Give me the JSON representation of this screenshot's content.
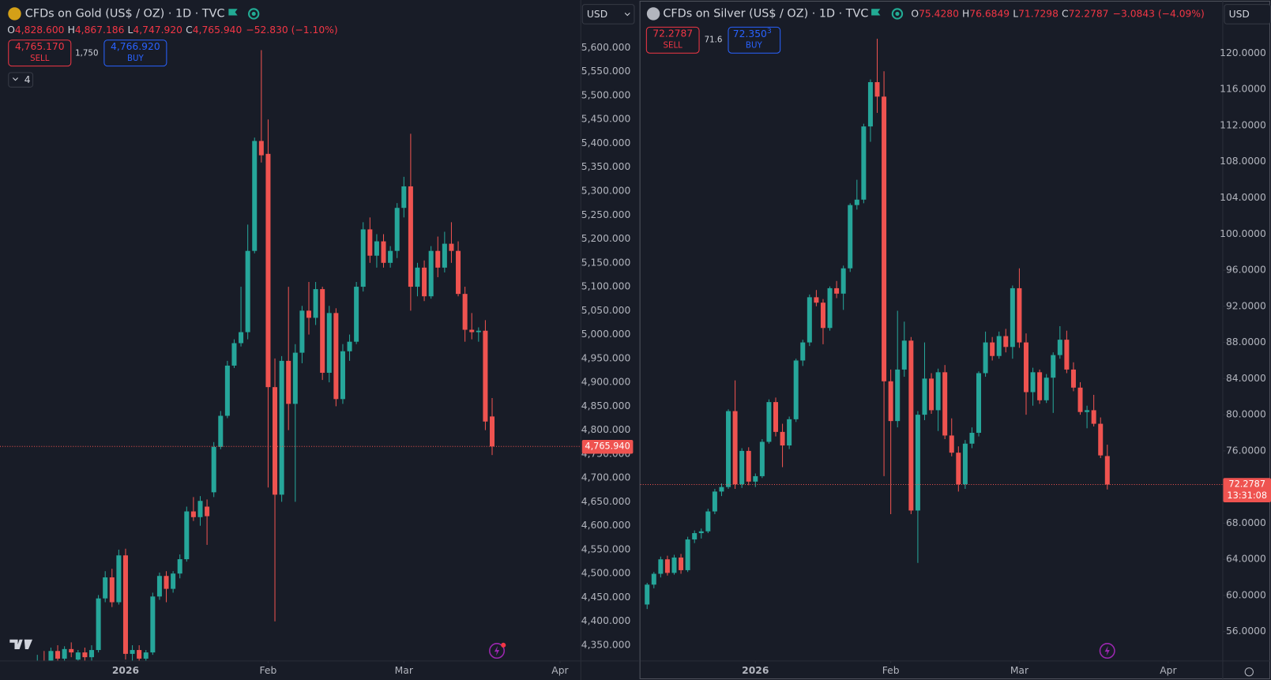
{
  "chart_data": [
    {
      "type": "candlestick",
      "title": "CFDs on Gold (US$ / OZ) · 1D · TVC",
      "ohlc_legend": [
        {
          "key": "O",
          "value": "4,828.600"
        },
        {
          "key": "H",
          "value": "4,867.186"
        },
        {
          "key": "L",
          "value": "4,747.920"
        },
        {
          "key": "C",
          "value": "4,765.940"
        }
      ],
      "change": "−52.830 (−1.10%)",
      "sell_price": "4,765.170",
      "sell_label": "SELL",
      "spread": "1,750",
      "buy_price": "4,766.920",
      "buy_label": "BUY",
      "indicator_count": "4",
      "currency": "USD",
      "up_color": "#26a69a",
      "down_color": "#ef5350",
      "grid": false,
      "open": [
        4290,
        4318,
        4305,
        4338,
        4322,
        4342,
        4320,
        4335,
        4325,
        4340,
        4448,
        4492,
        4440,
        4538,
        4332,
        4340,
        4322,
        4335,
        4452,
        4495,
        4468,
        4500,
        4530,
        4630,
        4618,
        4640,
        4670,
        4765,
        4830,
        4935,
        4982,
        5005,
        5175,
        5405,
        5378,
        4890,
        4665,
        4945,
        4855,
        4962,
        5050,
        5035,
        5095,
        4920,
        5045,
        4865,
        4965,
        4985,
        5100,
        5220,
        5165,
        5195,
        5150,
        5175,
        5265,
        5310,
        5100,
        5140,
        5080,
        5175,
        5140,
        5190,
        5175,
        5085,
        5010,
        5005,
        5008,
        4828.6
      ],
      "high": [
        4330,
        4338,
        4345,
        4350,
        4348,
        4356,
        4340,
        4345,
        4350,
        4455,
        4505,
        4510,
        4550,
        4552,
        4350,
        4350,
        4340,
        4460,
        4502,
        4505,
        4505,
        4540,
        4640,
        4660,
        4662,
        4655,
        4775,
        4840,
        4945,
        4990,
        5100,
        5230,
        5412,
        5595,
        5450,
        4950,
        4955,
        5100,
        4980,
        5060,
        5110,
        5110,
        5100,
        5060,
        5055,
        4980,
        5000,
        5110,
        5235,
        5245,
        5210,
        5210,
        5185,
        5275,
        5330,
        5420,
        5150,
        5155,
        5185,
        5205,
        5215,
        5235,
        5195,
        5100,
        5045,
        5015,
        5030,
        4867.186
      ],
      "low": [
        4270,
        4295,
        4300,
        4310,
        4315,
        4325,
        4300,
        4315,
        4310,
        4335,
        4440,
        4430,
        4435,
        4320,
        4315,
        4310,
        4300,
        4330,
        4445,
        4440,
        4460,
        4490,
        4525,
        4610,
        4600,
        4560,
        4660,
        4760,
        4825,
        4930,
        4975,
        4990,
        5170,
        5360,
        4680,
        4400,
        4650,
        4800,
        4650,
        4940,
        5000,
        5020,
        4905,
        4900,
        4850,
        4855,
        4945,
        4980,
        5090,
        5150,
        5140,
        5140,
        5140,
        5160,
        5245,
        5050,
        5080,
        5070,
        5075,
        5120,
        5130,
        5150,
        5080,
        4985,
        4990,
        4985,
        4800,
        4747.92
      ],
      "close": [
        4318,
        4305,
        4338,
        4322,
        4342,
        4335,
        4335,
        4325,
        4340,
        4448,
        4492,
        4440,
        4538,
        4332,
        4340,
        4322,
        4335,
        4452,
        4495,
        4468,
        4500,
        4530,
        4630,
        4618,
        4652,
        4620,
        4765,
        4830,
        4935,
        4982,
        5005,
        5175,
        5405,
        5375,
        4890,
        4665,
        4945,
        4855,
        4962,
        5050,
        5035,
        5095,
        4920,
        5045,
        4865,
        4965,
        4985,
        5100,
        5220,
        5165,
        5195,
        5150,
        5175,
        5265,
        5310,
        5100,
        5140,
        5080,
        5175,
        5140,
        5190,
        5175,
        5085,
        5010,
        5005,
        5008,
        4818,
        4765.94
      ],
      "last_price": {
        "value": 4765.94,
        "label": "4,765.940"
      },
      "xlim": [
        -5.5,
        80
      ],
      "xticks": [
        {
          "value": 13,
          "label": "2026"
        },
        {
          "value": 34,
          "label": "Feb"
        },
        {
          "value": 54,
          "label": "Mar"
        },
        {
          "value": 77,
          "label": "Apr"
        }
      ],
      "ylim": [
        4318,
        5649
      ],
      "yticks": [
        {
          "value": 4350,
          "label": "4,350.000"
        },
        {
          "value": 4400,
          "label": "4,400.000"
        },
        {
          "value": 4450,
          "label": "4,450.000"
        },
        {
          "value": 4500,
          "label": "4,500.000"
        },
        {
          "value": 4550,
          "label": "4,550.000"
        },
        {
          "value": 4600,
          "label": "4,600.000"
        },
        {
          "value": 4650,
          "label": "4,650.000"
        },
        {
          "value": 4700,
          "label": "4,700.000"
        },
        {
          "value": 4750,
          "label": "4,750.000"
        },
        {
          "value": 4800,
          "label": "4,800.000"
        },
        {
          "value": 4850,
          "label": "4,850.000"
        },
        {
          "value": 4900,
          "label": "4,900.000"
        },
        {
          "value": 4950,
          "label": "4,950.000"
        },
        {
          "value": 5000,
          "label": "5,000.000"
        },
        {
          "value": 5050,
          "label": "5,050.000"
        },
        {
          "value": 5100,
          "label": "5,100.000"
        },
        {
          "value": 5150,
          "label": "5,150.000"
        },
        {
          "value": 5200,
          "label": "5,200.000"
        },
        {
          "value": 5250,
          "label": "5,250.000"
        },
        {
          "value": 5300,
          "label": "5,300.000"
        },
        {
          "value": 5350,
          "label": "5,350.000"
        },
        {
          "value": 5400,
          "label": "5,400.000"
        },
        {
          "value": 5450,
          "label": "5,450.000"
        },
        {
          "value": 5500,
          "label": "5,500.000"
        },
        {
          "value": 5550,
          "label": "5,550.000"
        },
        {
          "value": 5600,
          "label": "5,600.000"
        }
      ]
    },
    {
      "type": "candlestick",
      "title": "CFDs on Silver (US$ / OZ) · 1D · TVC",
      "ohlc_legend": [
        {
          "key": "O",
          "value": "75.4280"
        },
        {
          "key": "H",
          "value": "76.6849"
        },
        {
          "key": "L",
          "value": "71.7298"
        },
        {
          "key": "C",
          "value": "72.2787"
        }
      ],
      "change": "−3.0843 (−4.09%)",
      "sell_price": "72.2787",
      "sell_label": "SELL",
      "spread": "71.6",
      "buy_price": "72.350",
      "buy_price_sup": "3",
      "buy_label": "BUY",
      "currency": "USD",
      "countdown": "13:31:08",
      "up_color": "#26a69a",
      "down_color": "#ef5350",
      "grid": false,
      "open": [
        59.0,
        61.2,
        62.4,
        64.0,
        62.5,
        64.2,
        62.8,
        66.2,
        66.9,
        67.1,
        69.3,
        71.5,
        72.0,
        80.4,
        72.3,
        76.0,
        72.6,
        73.2,
        77.0,
        81.4,
        78.1,
        76.6,
        79.5,
        86.0,
        88.0,
        93.0,
        92.4,
        89.6,
        94.0,
        93.4,
        96.2,
        103.2,
        103.8,
        111.9,
        116.8,
        115.2,
        83.7,
        79.3,
        85.0,
        88.2,
        69.4,
        80.0,
        84.0,
        80.5,
        84.7,
        77.7,
        75.8,
        72.3,
        76.8,
        78.0,
        84.6,
        88.0,
        86.5,
        88.7,
        87.5,
        94.0,
        88.0,
        82.5,
        84.7,
        81.6,
        84.1,
        86.6,
        88.3,
        85.0,
        83.0,
        80.3,
        80.5,
        79.0,
        75.428
      ],
      "high": [
        61.4,
        62.6,
        64.3,
        64.4,
        64.5,
        64.6,
        66.5,
        67.2,
        67.4,
        69.6,
        71.8,
        72.4,
        80.6,
        83.8,
        76.3,
        76.4,
        73.5,
        77.3,
        81.7,
        81.9,
        79.0,
        79.8,
        86.2,
        88.3,
        93.3,
        93.8,
        92.8,
        94.2,
        94.8,
        96.5,
        103.4,
        106.0,
        112.2,
        117.1,
        121.6,
        118.0,
        85.0,
        91.5,
        90.3,
        88.6,
        80.4,
        88.0,
        84.6,
        85.1,
        85.5,
        79.6,
        76.5,
        77.2,
        78.6,
        84.8,
        89.2,
        88.6,
        89.2,
        89.5,
        94.3,
        96.2,
        89.0,
        85.2,
        85.0,
        84.5,
        86.9,
        89.8,
        89.3,
        85.8,
        83.6,
        81.0,
        82.2,
        79.7,
        76.6849
      ],
      "low": [
        58.5,
        60.8,
        62.0,
        62.2,
        62.3,
        62.4,
        62.6,
        65.8,
        66.3,
        66.9,
        69.0,
        71.0,
        71.8,
        71.8,
        71.9,
        72.2,
        72.0,
        73.0,
        76.8,
        77.6,
        74.2,
        76.2,
        79.2,
        85.4,
        87.6,
        92.0,
        87.8,
        89.3,
        92.9,
        91.6,
        95.8,
        102.7,
        103.4,
        110.2,
        113.4,
        73.2,
        69.0,
        78.6,
        84.2,
        69.0,
        63.6,
        79.4,
        80.1,
        78.2,
        77.3,
        75.4,
        71.5,
        71.8,
        76.3,
        77.6,
        84.2,
        86.0,
        86.2,
        86.9,
        86.2,
        87.4,
        80.0,
        81.0,
        81.2,
        81.3,
        80.2,
        86.2,
        84.6,
        82.6,
        80.0,
        78.5,
        78.7,
        75.2,
        71.7298
      ],
      "close": [
        61.2,
        62.4,
        64.0,
        62.5,
        64.2,
        62.8,
        66.2,
        66.9,
        67.1,
        69.3,
        71.5,
        72.0,
        80.4,
        72.3,
        76.0,
        72.6,
        73.2,
        77.0,
        81.4,
        78.1,
        76.6,
        79.5,
        86.0,
        88.0,
        93.0,
        92.4,
        89.6,
        94.0,
        93.4,
        96.2,
        103.2,
        103.8,
        111.9,
        116.8,
        115.2,
        83.7,
        79.3,
        85.0,
        88.2,
        69.4,
        80.0,
        84.0,
        80.5,
        84.7,
        77.7,
        75.8,
        72.3,
        76.8,
        78.0,
        84.6,
        88.0,
        86.5,
        88.7,
        87.5,
        94.0,
        88.0,
        82.5,
        84.7,
        81.6,
        84.1,
        86.6,
        88.3,
        85.0,
        83.0,
        80.3,
        80.5,
        79.0,
        75.5,
        72.2787
      ],
      "last_price": {
        "value": 72.2787,
        "label": "72.2787"
      },
      "xlim": [
        -1,
        85
      ],
      "xticks": [
        {
          "value": 16,
          "label": "2026"
        },
        {
          "value": 36,
          "label": "Feb"
        },
        {
          "value": 55,
          "label": "Mar"
        },
        {
          "value": 77,
          "label": "Apr"
        }
      ],
      "ylim": [
        52.8,
        123.2
      ],
      "yticks": [
        {
          "value": 56,
          "label": "56.0000"
        },
        {
          "value": 60,
          "label": "60.0000"
        },
        {
          "value": 64,
          "label": "64.0000"
        },
        {
          "value": 68,
          "label": "68.0000"
        },
        {
          "value": 72,
          "label": "72.0000"
        },
        {
          "value": 76,
          "label": "76.0000"
        },
        {
          "value": 80,
          "label": "80.0000"
        },
        {
          "value": 84,
          "label": "84.0000"
        },
        {
          "value": 88,
          "label": "88.0000"
        },
        {
          "value": 92,
          "label": "92.0000"
        },
        {
          "value": 96,
          "label": "96.0000"
        },
        {
          "value": 100,
          "label": "100.0000"
        },
        {
          "value": 104,
          "label": "104.0000"
        },
        {
          "value": 108,
          "label": "108.0000"
        },
        {
          "value": 112,
          "label": "112.0000"
        },
        {
          "value": 116,
          "label": "116.0000"
        },
        {
          "value": 120,
          "label": "120.0000"
        }
      ]
    }
  ]
}
